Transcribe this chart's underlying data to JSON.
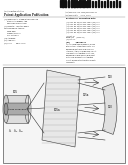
{
  "bg_color": "#ffffff",
  "barcode_color": "#111111",
  "header_text_color": "#333333",
  "box_color": "#cccccc",
  "diagram_bg": "#f8f8f8",
  "title": "BURIED DUAL TAPER WAVEGUIDE FOR PASSIVE ALIGNMENT AND PHOTONIC INTEGRATION"
}
